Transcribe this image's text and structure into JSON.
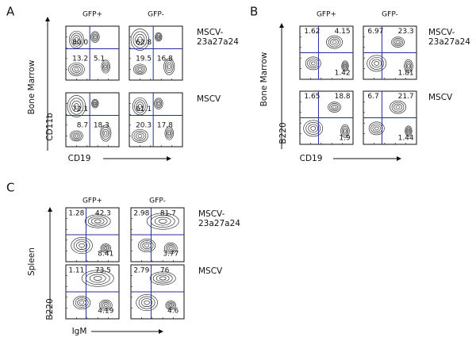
{
  "panels": [
    {
      "letter": "A",
      "columns": [
        "GFP+",
        "GFP-"
      ],
      "y_tissue": "Bone Marrow",
      "y_marker": "CD11b",
      "x_marker": "CD19",
      "rows": [
        {
          "label": [
            "MSCV-",
            "23a27a24"
          ],
          "plots": [
            [
              "80.0",
              "13.2",
              "5.1"
            ],
            [
              "62.8",
              "19.5",
              "16.8"
            ]
          ]
        },
        {
          "label": [
            "MSCV"
          ],
          "plots": [
            [
              "72.1",
              "8.7",
              "18.3"
            ],
            [
              "61.1",
              "20.3",
              "17.8"
            ]
          ]
        }
      ]
    },
    {
      "letter": "B",
      "columns": [
        "GFP+",
        "GFP-"
      ],
      "y_tissue": "Bone Marrow",
      "y_marker": "B220",
      "x_marker": "CD19",
      "rows": [
        {
          "label": [
            "MSCV-",
            "23a27a24"
          ],
          "plots": [
            [
              "1.62",
              "4.15",
              "1.42"
            ],
            [
              "6.97",
              "23.3",
              "1.81"
            ]
          ]
        },
        {
          "label": [
            "MSCV"
          ],
          "plots": [
            [
              "1.65",
              "18.8",
              "1.9"
            ],
            [
              "6.7",
              "21.7",
              "1.44"
            ]
          ]
        }
      ]
    },
    {
      "letter": "C",
      "columns": [
        "GFP+",
        "GFP-"
      ],
      "y_tissue": "Spleen",
      "y_marker": "B220",
      "x_marker": "IgM",
      "rows": [
        {
          "label": [
            "MSCV-",
            "23a27a24"
          ],
          "plots": [
            [
              "1.28",
              "42.3",
              "8.41"
            ],
            [
              "2.98",
              "81.7",
              "3.77"
            ]
          ]
        },
        {
          "label": [
            "MSCV"
          ],
          "plots": [
            [
              "1.11",
              "73.5",
              "4.19"
            ],
            [
              "2.79",
              "76",
              "4.6"
            ]
          ]
        }
      ]
    }
  ]
}
